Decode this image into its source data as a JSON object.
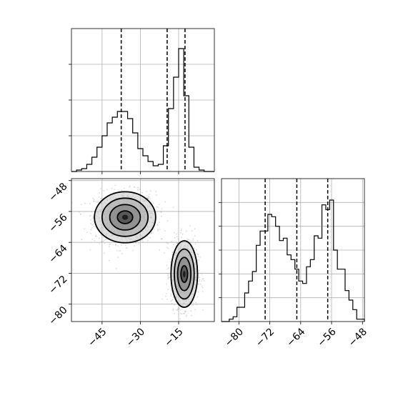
{
  "chart_data": [
    {
      "type": "histogram",
      "panel": "top-left marginal",
      "variable_index": 0,
      "xlim": [
        -57,
        -1
      ],
      "bins": {
        "edges": [
          -57,
          -55,
          -53,
          -51,
          -49,
          -47,
          -45,
          -43,
          -41,
          -39,
          -37,
          -35,
          -33,
          -31,
          -29,
          -27,
          -25,
          -23,
          -21,
          -19,
          -17,
          -15,
          -13,
          -11,
          -9,
          -7,
          -5,
          -3,
          -1
        ],
        "counts": [
          0,
          1,
          2,
          5,
          10,
          17,
          25,
          34,
          38,
          42,
          42,
          37,
          27,
          16,
          11,
          7,
          4,
          5,
          18,
          44,
          66,
          86,
          53,
          17,
          3,
          1,
          0,
          0
        ]
      },
      "quantile_lines": [
        -37.5,
        -19.5,
        -12.5
      ],
      "ylim": [
        0,
        100
      ],
      "grid": true,
      "y_ticks_labeled": false
    },
    {
      "type": "histogram",
      "panel": "bottom-right marginal",
      "variable_index": 1,
      "xlim": [
        -84.5,
        -47.5
      ],
      "xticks": [
        -80,
        -72,
        -64,
        -56,
        -48
      ],
      "xtick_labels": [
        "−80",
        "−72",
        "−64",
        "−56",
        "−48"
      ],
      "bins": {
        "edges": [
          -84.5,
          -83.5,
          -82.5,
          -81.5,
          -80.5,
          -79.5,
          -78.5,
          -77.5,
          -76.5,
          -75.5,
          -74.5,
          -73.5,
          -72.5,
          -71.5,
          -70.5,
          -69.5,
          -68.5,
          -67.5,
          -66.5,
          -65.5,
          -64.5,
          -63.5,
          -62.5,
          -61.5,
          -60.5,
          -59.5,
          -58.5,
          -57.5,
          -56.5,
          -55.5,
          -54.5,
          -53.5,
          -52.5,
          -51.5,
          -50.5,
          -49.5,
          -48.5,
          -47.5
        ],
        "counts": [
          0,
          0,
          1,
          2,
          6,
          6,
          12,
          17,
          21,
          32,
          38,
          38,
          45,
          44,
          40,
          34,
          35,
          28,
          26,
          22,
          17,
          16,
          23,
          26,
          36,
          35,
          49,
          47,
          51,
          30,
          22,
          22,
          13,
          9,
          5,
          1,
          1
        ]
      },
      "quantile_lines": [
        -73.2,
        -65.0,
        -57.0
      ],
      "ylim": [
        0,
        60
      ],
      "grid": true,
      "y_ticks_labeled": false
    },
    {
      "type": "scatter",
      "panel": "bottom-left joint",
      "x_variable_index": 0,
      "y_variable_index": 1,
      "xlim": [
        -57,
        -1
      ],
      "ylim": [
        -84.5,
        -47.5
      ],
      "xticks": [
        -45,
        -30,
        -15
      ],
      "xtick_labels": [
        "−45",
        "−30",
        "−15"
      ],
      "yticks": [
        -48,
        -56,
        -64,
        -72,
        -80
      ],
      "ytick_labels": [
        "−48",
        "−56",
        "−64",
        "−72",
        "−80"
      ],
      "clusters": [
        {
          "mean": [
            -36,
            -57.5
          ],
          "sd": [
            6.0,
            3.3
          ],
          "n": 1100
        },
        {
          "mean": [
            -12.8,
            -72.2
          ],
          "sd": [
            2.6,
            4.3
          ],
          "n": 1000
        }
      ],
      "density_contours": true,
      "contour_levels": 4
    }
  ]
}
